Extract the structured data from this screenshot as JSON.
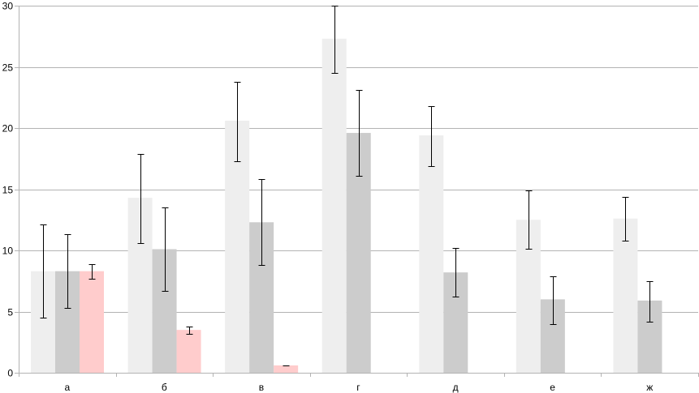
{
  "chart_data": {
    "type": "bar",
    "title": "",
    "xlabel": "",
    "ylabel": "",
    "categories": [
      "а",
      "б",
      "в",
      "г",
      "д",
      "е",
      "ж"
    ],
    "ylim": [
      0,
      30
    ],
    "yticks": [
      0,
      5,
      10,
      15,
      20,
      25,
      30
    ],
    "grid": true,
    "legend": "none",
    "series": [
      {
        "color": "#eeeeee",
        "values": [
          8.3,
          14.3,
          20.6,
          27.3,
          19.4,
          12.5,
          12.6
        ],
        "err_low": [
          4.5,
          10.6,
          17.3,
          24.5,
          16.9,
          10.1,
          10.8
        ],
        "err_high": [
          12.1,
          17.9,
          23.8,
          30.0,
          21.8,
          14.9,
          14.4
        ]
      },
      {
        "color": "#cccccc",
        "values": [
          8.3,
          10.1,
          12.3,
          19.6,
          8.2,
          6.0,
          5.9
        ],
        "err_low": [
          5.3,
          6.7,
          8.8,
          16.1,
          6.2,
          4.0,
          4.2
        ],
        "err_high": [
          11.3,
          13.5,
          15.8,
          23.1,
          10.2,
          7.9,
          7.5
        ]
      },
      {
        "color": "#ffcccc",
        "values": [
          8.3,
          3.5,
          0.6,
          0.0,
          0.0,
          0.0,
          0.0
        ],
        "err_low": [
          7.7,
          3.2,
          0.6,
          0.0,
          0.0,
          0.0,
          0.0
        ],
        "err_high": [
          8.9,
          3.8,
          0.6,
          0.0,
          0.0,
          0.0,
          0.0
        ]
      }
    ]
  }
}
